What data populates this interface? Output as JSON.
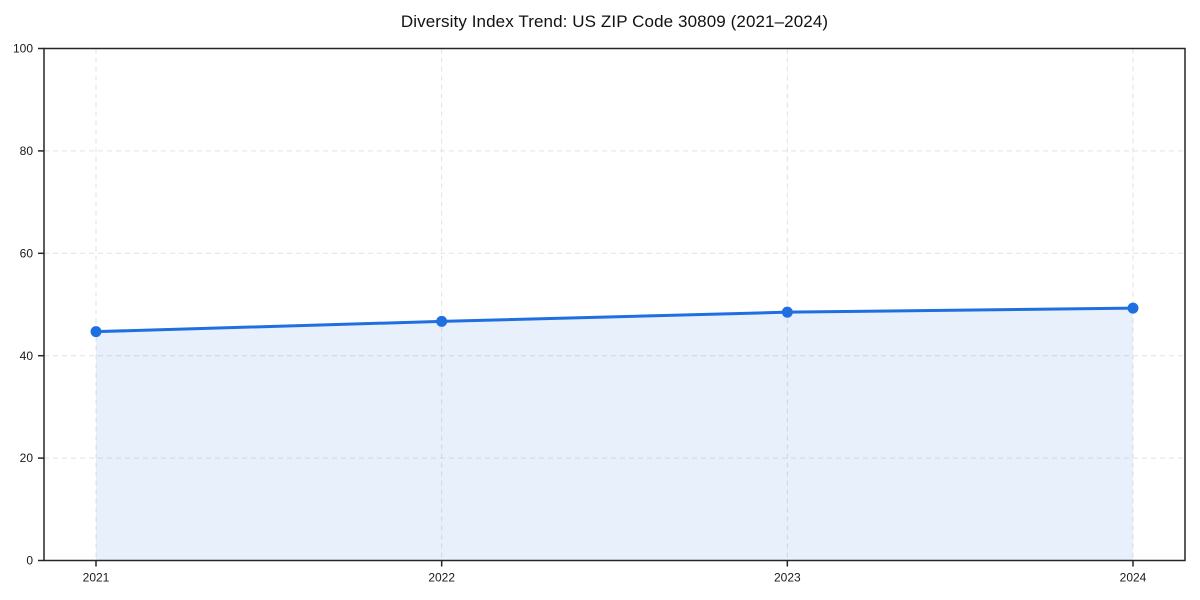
{
  "figure": {
    "background": "#ffffff"
  },
  "chart_data": {
    "type": "area",
    "title": "Diversity Index Trend: US ZIP Code 30809 (2021–2024)",
    "categories": [
      "2021",
      "2022",
      "2023",
      "2024"
    ],
    "series": [
      {
        "name": "Diversity Index",
        "values": [
          44.7,
          46.7,
          48.5,
          49.3
        ]
      }
    ],
    "xlabel": "",
    "ylabel": "",
    "ylim": [
      0,
      100
    ],
    "yticks": [
      0,
      20,
      40,
      60,
      80,
      100
    ],
    "grid": "dashed-both-axes",
    "legend_position": "none",
    "colors": {
      "line": "#1f6fe0",
      "marker": "#1f6fe0",
      "fill": "rgba(31,111,224,0.10)",
      "gridline": "#e2e2e2",
      "spine": "#262626",
      "tick_label": "#1a1a1a",
      "title": "#111111"
    }
  }
}
